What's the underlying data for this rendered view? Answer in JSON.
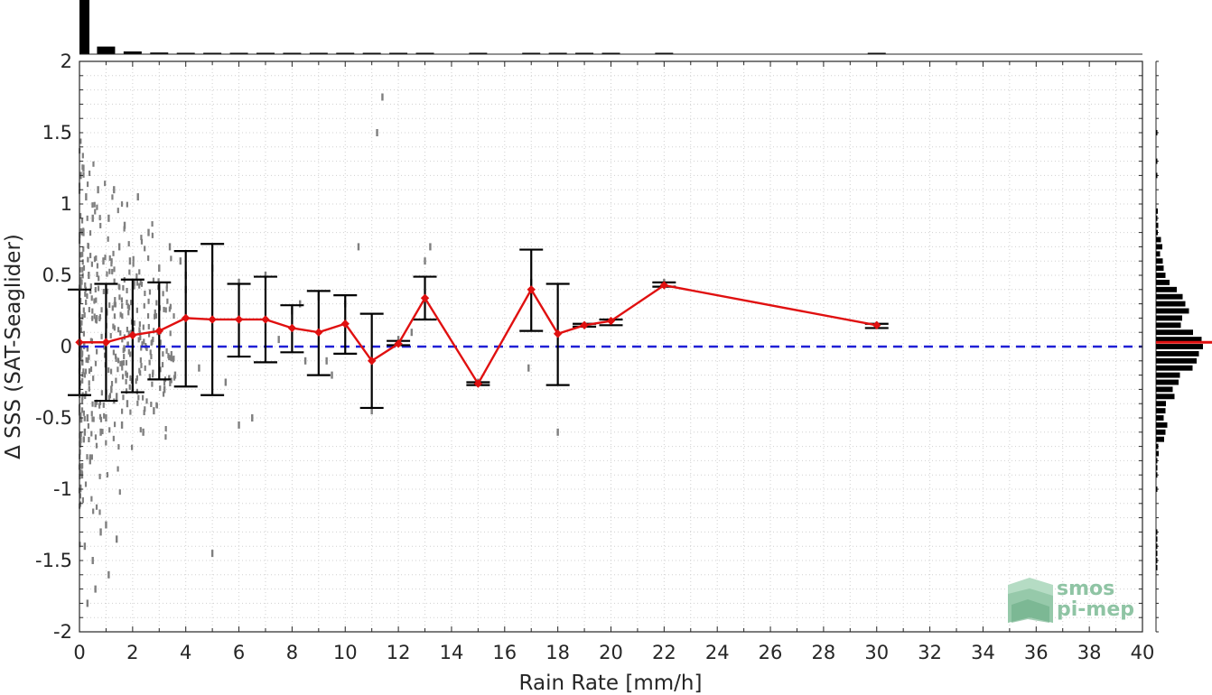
{
  "chart_data": {
    "type": "scatter",
    "xlabel": "Rain Rate [mm/h]",
    "ylabel": "Δ SSS (SAT-Seaglider)",
    "xlim": [
      0,
      40
    ],
    "ylim": [
      -2,
      2
    ],
    "x_ticks": [
      "0",
      "2",
      "4",
      "6",
      "8",
      "10",
      "12",
      "14",
      "16",
      "18",
      "20",
      "22",
      "24",
      "26",
      "28",
      "30",
      "32",
      "34",
      "36",
      "38",
      "40"
    ],
    "y_ticks": [
      "2",
      "1.5",
      "1",
      "0.5",
      "0",
      "-0.5",
      "-1",
      "-1.5",
      "-2"
    ],
    "grid": true,
    "reference_line": {
      "y": 0,
      "style": "dashed",
      "color": "#1f1fd6"
    },
    "series": [
      {
        "type": "line",
        "color": "#e01010",
        "marker": "diamond",
        "x": [
          0,
          1,
          2,
          3,
          4,
          5,
          6,
          7,
          8,
          9,
          10,
          11,
          12,
          13,
          15,
          17,
          18,
          19,
          20,
          22,
          30
        ],
        "y": [
          0.03,
          0.03,
          0.08,
          0.11,
          0.2,
          0.19,
          0.19,
          0.19,
          0.13,
          0.1,
          0.16,
          -0.1,
          0.02,
          0.34,
          -0.26,
          0.4,
          0.09,
          0.15,
          0.18,
          0.43,
          0.15
        ]
      }
    ],
    "error_bars": {
      "color": "#000000",
      "x": [
        0,
        1,
        2,
        3,
        4,
        5,
        6,
        7,
        8,
        9,
        10,
        11,
        12,
        13,
        15,
        17,
        18,
        19,
        20,
        22,
        30
      ],
      "low": [
        -0.34,
        -0.38,
        -0.32,
        -0.23,
        -0.28,
        -0.34,
        -0.07,
        -0.11,
        -0.04,
        -0.2,
        -0.05,
        -0.43,
        0.01,
        0.19,
        -0.27,
        0.11,
        -0.27,
        0.14,
        0.15,
        0.42,
        0.13
      ],
      "high": [
        0.4,
        0.44,
        0.47,
        0.45,
        0.67,
        0.72,
        0.44,
        0.49,
        0.29,
        0.39,
        0.36,
        0.23,
        0.04,
        0.49,
        -0.25,
        0.68,
        0.44,
        0.16,
        0.19,
        0.45,
        0.16
      ]
    },
    "scatter_points": {
      "color": "#7f7f7f",
      "description_free": true,
      "x": [
        0.05,
        0.1,
        0.15,
        0.2,
        0.25,
        0.3,
        0.35,
        0.4,
        0.5,
        0.6,
        0.7,
        0.8,
        0.9,
        1.0,
        1.1,
        1.2,
        1.3,
        1.4,
        1.5,
        1.6,
        1.7,
        1.8,
        1.9,
        2.0,
        2.2,
        2.4,
        2.6,
        2.8,
        3.0,
        3.2,
        3.4,
        3.6,
        3.8,
        4.0,
        4.5,
        5.0,
        5.5,
        6.0,
        6.5,
        7.0,
        7.5,
        8.0,
        8.5,
        9.0,
        9.5,
        10.0,
        10.5,
        11.0,
        11.2,
        11.4,
        12.0,
        12.5,
        13.0,
        15.0,
        17.0,
        18.0,
        19.0,
        20.0,
        22.0,
        30.0
      ],
      "y": [
        1.2,
        -0.9,
        0.8,
        -0.6,
        1.05,
        -0.5,
        0.5,
        -0.8,
        0.9,
        -0.4,
        1.1,
        -0.6,
        0.6,
        -0.5,
        0.9,
        -0.3,
        1.1,
        -0.35,
        0.7,
        -0.55,
        0.85,
        -0.4,
        0.6,
        -0.3,
        1.05,
        -0.6,
        0.8,
        -0.45,
        0.55,
        -0.3,
        0.7,
        -0.2,
        0.6,
        0.5,
        -0.15,
        0.55,
        -0.25,
        0.45,
        -0.5,
        0.5,
        0.05,
        0.25,
        -0.1,
        0.35,
        -0.2,
        0.3,
        0.7,
        -0.45,
        1.5,
        1.75,
        0.05,
        0.1,
        0.6,
        -0.25,
        0.45,
        -0.6,
        0.15,
        0.17,
        0.45,
        0.15
      ],
      "extra_x": [
        0.2,
        0.5,
        0.8,
        1.1,
        1.4,
        4.0,
        6.0,
        8.3,
        9.3,
        13.2,
        16.9,
        0.3,
        0.6,
        1.0,
        0.15,
        5.0
      ],
      "extra_y": [
        -1.4,
        -1.5,
        -1.3,
        -1.6,
        -1.35,
        0.4,
        -0.55,
        0.3,
        -0.1,
        0.7,
        -0.15,
        -1.8,
        -1.7,
        -1.25,
        1.25,
        -1.45
      ]
    },
    "top_histogram": {
      "bins": [
        0,
        1,
        2,
        3,
        4,
        5,
        6,
        7,
        8,
        9,
        10,
        11,
        12,
        13,
        15,
        17,
        18,
        19,
        20,
        22,
        30
      ],
      "counts": [
        100,
        14,
        5,
        3,
        1.5,
        1.2,
        1,
        0.8,
        0.7,
        0.6,
        0.6,
        0.5,
        0.4,
        0.4,
        0.3,
        0.4,
        0.3,
        0.2,
        0.3,
        0.3,
        0.2
      ]
    },
    "right_histogram": {
      "bin_centers": [
        0.95,
        0.9,
        0.85,
        0.8,
        0.75,
        0.7,
        0.65,
        0.6,
        0.55,
        0.5,
        0.45,
        0.4,
        0.35,
        0.3,
        0.25,
        0.2,
        0.15,
        0.1,
        0.05,
        0.0,
        -0.05,
        -0.1,
        -0.15,
        -0.2,
        -0.25,
        -0.3,
        -0.35,
        -0.4,
        -0.45,
        -0.5,
        -0.55,
        -0.6,
        -0.65,
        -0.7,
        -0.75,
        -0.8,
        -0.85,
        -0.9,
        -1.0,
        -1.3,
        -1.35,
        -1.4,
        -1.45,
        -1.5,
        -1.55,
        1.2,
        1.3,
        1.5
      ],
      "counts": [
        0.4,
        0.3,
        0.5,
        0.4,
        1.1,
        1.4,
        0.9,
        1.5,
        1.7,
        2.1,
        3.0,
        4.6,
        5.9,
        6.5,
        7.3,
        5.8,
        5.5,
        8.2,
        10.1,
        10.4,
        9.5,
        9.0,
        8.1,
        5.3,
        5.0,
        3.7,
        4.1,
        2.2,
        2.1,
        1.7,
        2.5,
        2.1,
        1.8,
        0.5,
        0.6,
        0.3,
        0.2,
        0.2,
        0.2,
        0.2,
        0.2,
        0.2,
        0.2,
        0.2,
        0.2,
        0.1,
        0.1,
        0.1
      ],
      "mean_line_y": 0.03,
      "mean_line_color": "#e01010"
    },
    "logo": {
      "line1": "smos",
      "line2": "pi-mep"
    }
  }
}
